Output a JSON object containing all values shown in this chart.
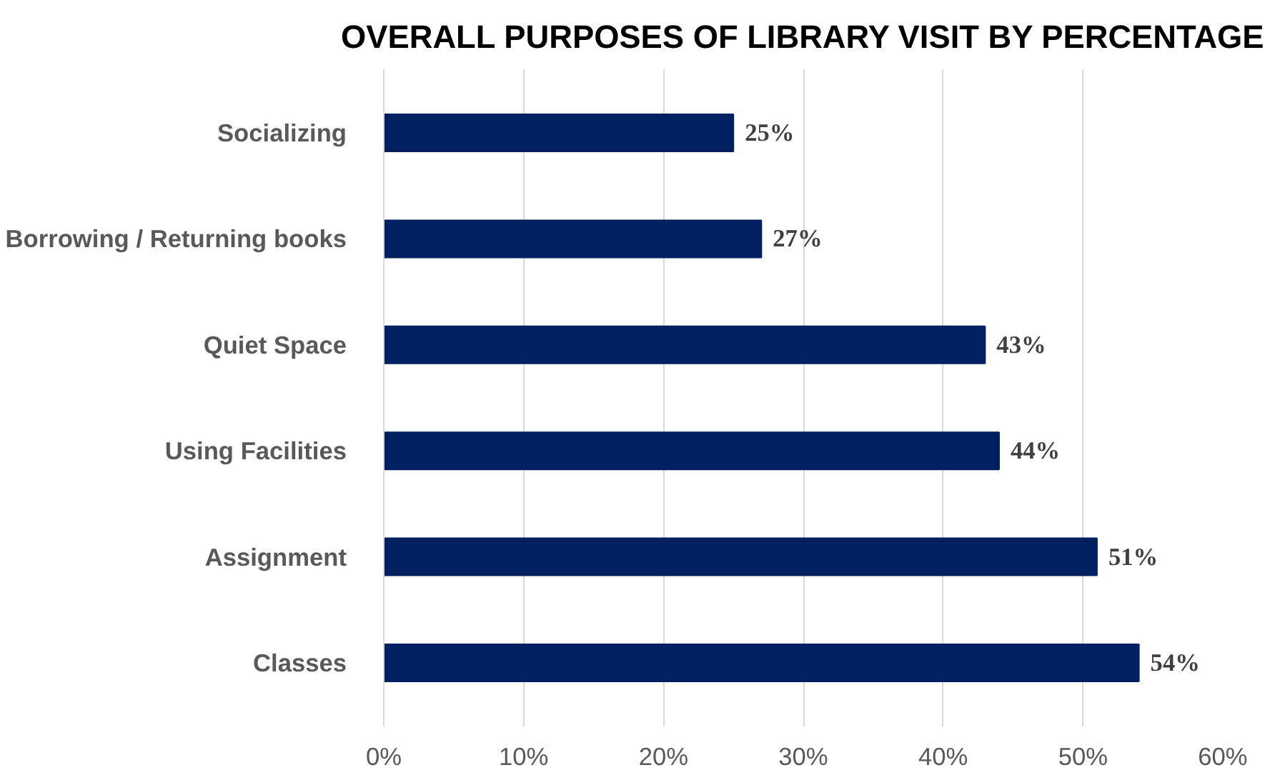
{
  "chart_data": {
    "type": "bar",
    "orientation": "horizontal",
    "title": "OVERALL PURPOSES OF LIBRARY VISIT BY PERCENTAGE",
    "categories": [
      "Socializing",
      "Borrowing / Returning books",
      "Quiet Space",
      "Using Facilities",
      "Assignment",
      "Classes"
    ],
    "values": [
      25,
      27,
      43,
      44,
      51,
      54
    ],
    "value_labels": [
      "25%",
      "27%",
      "43%",
      "44%",
      "51%",
      "54%"
    ],
    "color": "#002060",
    "xlim": [
      0,
      60
    ],
    "xticks": [
      {
        "value": 0,
        "label": "0%"
      },
      {
        "value": 10,
        "label": "10%"
      },
      {
        "value": 20,
        "label": "20%"
      },
      {
        "value": 30,
        "label": "30%"
      },
      {
        "value": 40,
        "label": "40%"
      },
      {
        "value": 50,
        "label": "50%"
      },
      {
        "value": 60,
        "label": "60%"
      }
    ],
    "grid": "x"
  }
}
